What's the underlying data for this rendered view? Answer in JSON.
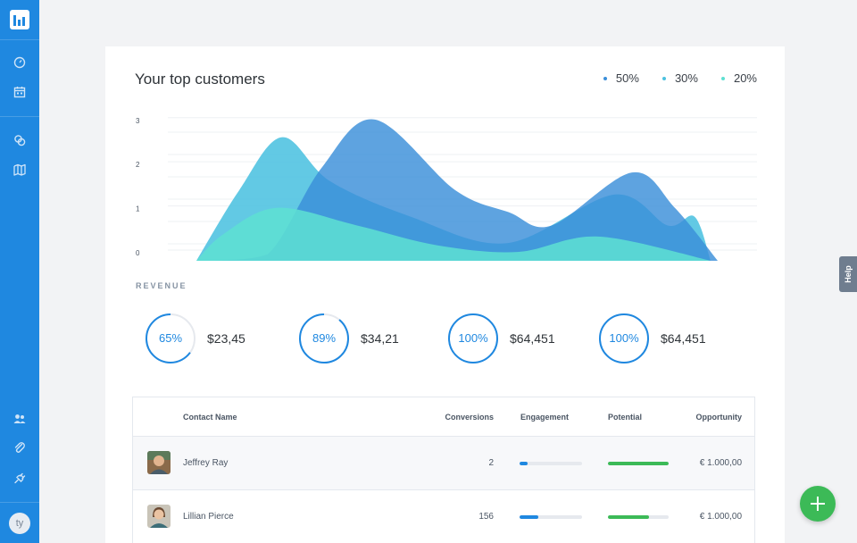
{
  "sidebar": {
    "items": [
      {
        "icon": "dashboard-gauge-icon"
      },
      {
        "icon": "calendar-icon"
      },
      {
        "icon": "coins-icon"
      },
      {
        "icon": "map-icon"
      },
      {
        "icon": "users-icon"
      },
      {
        "icon": "paperclip-icon"
      },
      {
        "icon": "plug-icon"
      }
    ],
    "avatar_initials": "ty"
  },
  "help_label": "Help",
  "card": {
    "title": "Your top customers",
    "legend": [
      {
        "label": "50%",
        "color": "#3b8fd9"
      },
      {
        "label": "30%",
        "color": "#4cc2e0"
      },
      {
        "label": "20%",
        "color": "#5ee0d2"
      }
    ]
  },
  "chart_data": {
    "type": "area",
    "y_ticks": [
      "3",
      "2",
      "1",
      "0"
    ],
    "ylim": [
      0,
      3.4
    ],
    "grid": true,
    "legend": "top-right",
    "series": [
      {
        "name": "50%",
        "color": "#3b8fd9",
        "x": [
          0,
          0.1,
          0.2,
          0.3,
          0.45,
          0.55,
          0.63,
          0.78,
          0.86,
          0.94
        ],
        "values": [
          0,
          0.15,
          2.1,
          3.2,
          1.6,
          1.1,
          0.8,
          2.0,
          1.2,
          0
        ]
      },
      {
        "name": "30%",
        "color": "#4cc2e0",
        "x": [
          0,
          0.08,
          0.16,
          0.25,
          0.4,
          0.58,
          0.78,
          0.88,
          0.93,
          0.96
        ],
        "values": [
          0,
          1.6,
          2.8,
          1.8,
          1.0,
          0.4,
          1.5,
          0.8,
          1.0,
          0
        ]
      },
      {
        "name": "20%",
        "color": "#5ee0d2",
        "x": [
          0,
          0.05,
          0.15,
          0.3,
          0.45,
          0.6,
          0.75,
          0.96
        ],
        "values": [
          0,
          0.6,
          1.2,
          0.8,
          0.35,
          0.2,
          0.55,
          0
        ]
      }
    ]
  },
  "revenue": {
    "label": "REVENUE",
    "stats": [
      {
        "percent": "65%",
        "fraction": 0.65,
        "value": "$23,45"
      },
      {
        "percent": "89%",
        "fraction": 0.89,
        "value": "$34,21"
      },
      {
        "percent": "100%",
        "fraction": 1.0,
        "value": "$64,451"
      },
      {
        "percent": "100%",
        "fraction": 1.0,
        "value": "$64,451"
      }
    ]
  },
  "table": {
    "headers": {
      "contact": "Contact Name",
      "conversions": "Conversions",
      "engagement": "Engagement",
      "potential": "Potential",
      "opportunity": "Opportunity"
    },
    "rows": [
      {
        "name": "Jeffrey Ray",
        "conversions": "2",
        "engagement": 0.13,
        "potential": 1.0,
        "opportunity": "€ 1.000,00"
      },
      {
        "name": "Lillian Pierce",
        "conversions": "156",
        "engagement": 0.3,
        "potential": 0.68,
        "opportunity": "€ 1.000,00"
      }
    ]
  },
  "colors": {
    "sidebar": "#1f88e0",
    "accent": "#1f88e0",
    "engagement_bar": "#1f88e0",
    "potential_bar": "#3cba57",
    "fab": "#3cba57"
  }
}
